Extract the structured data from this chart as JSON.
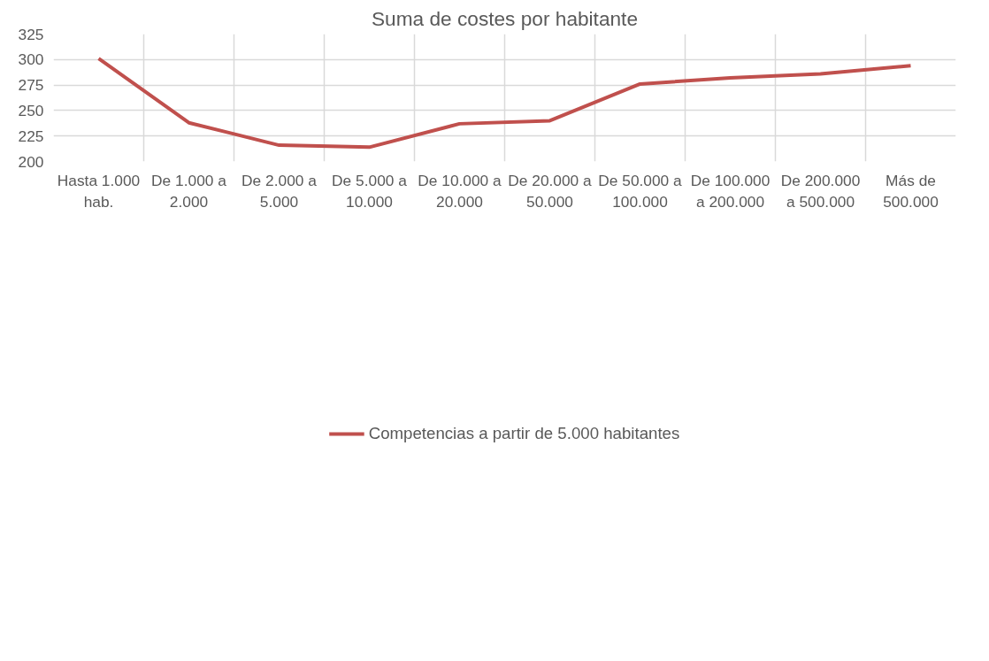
{
  "chart_data": {
    "type": "line",
    "title": "Suma de costes por habitante",
    "categories": [
      "Hasta 1.000 hab.",
      "De 1.000 a 2.000",
      "De 2.000 a 5.000",
      "De 5.000 a 10.000",
      "De 10.000 a 20.000",
      "De 20.000 a 50.000",
      "De 50.000 a 100.000",
      "De 100.000 a 200.000",
      "De 200.000 a 500.000",
      "Más de 500.000"
    ],
    "series": [
      {
        "name": "Competencias a partir de 5.000 habitantes",
        "color": "#c0504d",
        "values": [
          301,
          238,
          216,
          214,
          237,
          240,
          276,
          282,
          286,
          294
        ]
      }
    ],
    "ylim": [
      200,
      325
    ],
    "yticks": [
      200,
      225,
      250,
      275,
      300,
      325
    ],
    "grid": true,
    "legend": "bottom",
    "marker": "none",
    "line_style": "solid"
  }
}
